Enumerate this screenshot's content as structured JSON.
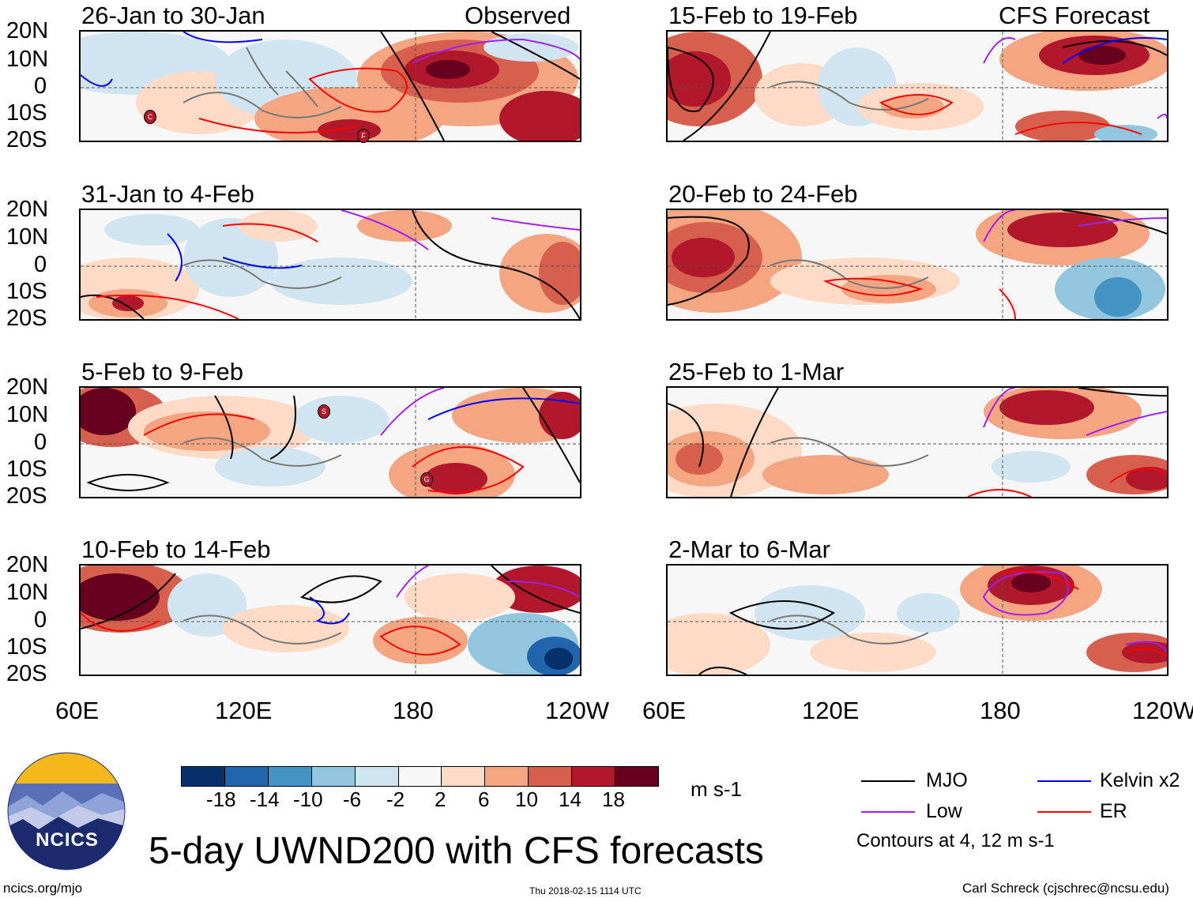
{
  "panels": {
    "observed_label": "Observed",
    "forecast_label": "CFS Forecast",
    "left": [
      {
        "title": "26-Jan to 30-Jan"
      },
      {
        "title": "31-Jan to 4-Feb"
      },
      {
        "title": "5-Feb to 9-Feb"
      },
      {
        "title": "10-Feb to 14-Feb"
      }
    ],
    "right": [
      {
        "title": "15-Feb to 19-Feb"
      },
      {
        "title": "20-Feb to 24-Feb"
      },
      {
        "title": "25-Feb to 1-Mar"
      },
      {
        "title": "2-Mar to 6-Mar"
      }
    ]
  },
  "axes": {
    "lat_labels": [
      "20N",
      "10N",
      "0",
      "10S",
      "20S"
    ],
    "lon_labels": [
      "60E",
      "120E",
      "180",
      "120W"
    ]
  },
  "storms": [
    {
      "letter": "C"
    },
    {
      "letter": "F"
    },
    {
      "letter": "S"
    },
    {
      "letter": "G"
    }
  ],
  "colorbar": {
    "colors": [
      "#08306b",
      "#2166ac",
      "#4393c3",
      "#92c5de",
      "#d1e5f0",
      "#f7f7f7",
      "#fddbc7",
      "#f4a582",
      "#d6604d",
      "#b2182b",
      "#67001f"
    ],
    "ticks": [
      "-18",
      "-14",
      "-10",
      "-6",
      "-2",
      "2",
      "6",
      "10",
      "14",
      "18"
    ],
    "units": "m s-1"
  },
  "title": "5-day UWND200 with CFS forecasts",
  "legend": {
    "items": [
      {
        "label": "MJO",
        "color": "#000000"
      },
      {
        "label": "Kelvin x2",
        "color": "#0000ff"
      },
      {
        "label": "Low",
        "color": "#a020f0"
      },
      {
        "label": "ER",
        "color": "#ff0000"
      }
    ],
    "contours_note": "Contours at 4, 12 m s-1"
  },
  "footer": {
    "url": "ncics.org/mjo",
    "timestamp": "Thu 2018-02-15 1114 UTC",
    "credit": "Carl Schreck (cjschrec@ncsu.edu)"
  },
  "logo": {
    "text": "NCICS"
  }
}
